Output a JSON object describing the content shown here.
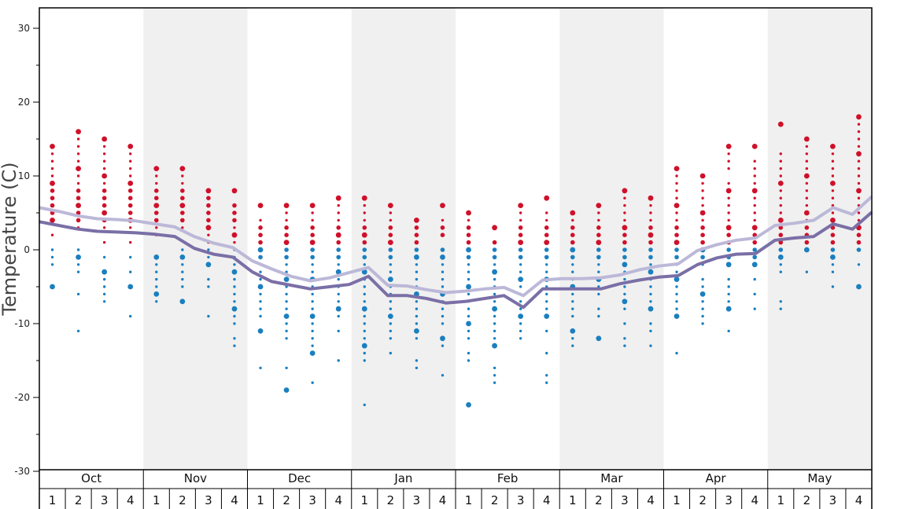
{
  "chart_data": {
    "type": "scatter",
    "ylabel": "Temperature (C)",
    "ylim": [
      -30,
      33
    ],
    "yticks": [
      30,
      20,
      10,
      0,
      -10,
      -20,
      -30
    ],
    "ytick_labels": [
      "30",
      "20",
      "10",
      "0",
      "-10",
      "-20",
      "-30"
    ],
    "months": [
      "Oct",
      "Nov",
      "Dec",
      "Jan",
      "Feb",
      "Mar",
      "Apr",
      "May"
    ],
    "weeks": [
      "1",
      "2",
      "3",
      "4"
    ],
    "colors": {
      "warm": "#d0102a",
      "cold": "#1b7fbf",
      "line_light": "#bcb8d8",
      "line_dark": "#7a6fa6",
      "band": "#f0f0f0",
      "frame": "#000000"
    },
    "series": [
      {
        "values": [
          5.7,
          5.2,
          4.6,
          4.2,
          4.1,
          3.9,
          3.5,
          3.1,
          1.8,
          0.9,
          0.3,
          -1.5,
          -2.6,
          -3.6,
          -4.2,
          -3.8,
          -3.1,
          -2.4,
          -4.8,
          -4.9,
          -5.4,
          -5.8,
          -5.6,
          -5.3,
          -5.1,
          -6.2,
          -4.1,
          -3.9,
          -3.9,
          -3.8,
          -3.4,
          -2.7,
          -2.2,
          -1.9,
          -0.1,
          0.7,
          1.3,
          1.6,
          3.3,
          3.6,
          4.0,
          5.7,
          4.8,
          7.2
        ]
      },
      {
        "values": [
          3.8,
          3.3,
          2.8,
          2.5,
          2.4,
          2.3,
          2.1,
          1.8,
          0.2,
          -0.6,
          -1.0,
          -3.0,
          -4.3,
          -4.8,
          -5.3,
          -5.0,
          -4.7,
          -3.6,
          -6.2,
          -6.2,
          -6.6,
          -7.2,
          -7.0,
          -6.6,
          -6.2,
          -7.8,
          -5.3,
          -5.3,
          -5.3,
          -5.3,
          -4.6,
          -4.1,
          -3.7,
          -3.5,
          -2.0,
          -1.1,
          -0.6,
          -0.5,
          1.3,
          1.6,
          1.8,
          3.5,
          2.8,
          5.1
        ]
      }
    ],
    "dots": [
      {
        "v": [
          14,
          13,
          12,
          11,
          10,
          9,
          8,
          7,
          6,
          5,
          4,
          2
        ],
        "c": [
          0,
          -1,
          -2,
          -5
        ]
      },
      {
        "v": [
          16,
          15,
          14,
          13,
          12,
          11,
          10,
          9,
          8,
          7,
          6,
          5,
          4,
          3
        ],
        "c": [
          0,
          -1,
          -2,
          -3,
          -6,
          -11
        ]
      },
      {
        "v": [
          15,
          14,
          13,
          12,
          11,
          10,
          9,
          8,
          7,
          6,
          5,
          4,
          3,
          1
        ],
        "c": [
          -1,
          -3,
          -4,
          -5,
          -6,
          -7
        ]
      },
      {
        "v": [
          14,
          13,
          12,
          11,
          10,
          9,
          8,
          7,
          6,
          5,
          4,
          3,
          1
        ],
        "c": [
          -1,
          -3,
          -5,
          -9
        ]
      },
      {
        "v": [
          11,
          10,
          9,
          8,
          7,
          6,
          5,
          4,
          3,
          2
        ],
        "c": [
          -1,
          -2,
          -3,
          -4,
          -5,
          -6,
          -7
        ]
      },
      {
        "v": [
          11,
          10,
          9,
          8,
          7,
          6,
          5,
          4,
          3
        ],
        "c": [
          0,
          -1,
          -2,
          -3,
          -4,
          -5,
          -7
        ]
      },
      {
        "v": [
          8,
          7,
          6,
          5,
          4,
          3,
          2,
          1
        ],
        "c": [
          0,
          -1,
          -2,
          -4,
          -5,
          -9
        ]
      },
      {
        "v": [
          8,
          6,
          5,
          4,
          3,
          2,
          1
        ],
        "c": [
          0,
          -1,
          -2,
          -3,
          -4,
          -5,
          -6,
          -7,
          -8,
          -9,
          -10,
          -12,
          -13
        ]
      },
      {
        "v": [
          6,
          4,
          3,
          2,
          1
        ],
        "c": [
          0,
          -1,
          -2,
          -3,
          -4,
          -5,
          -6,
          -7,
          -8,
          -9,
          -11,
          -16
        ]
      },
      {
        "v": [
          6,
          5,
          4,
          3,
          2,
          1
        ],
        "c": [
          0,
          -1,
          -2,
          -3,
          -4,
          -5,
          -6,
          -7,
          -8,
          -9,
          -10,
          -11,
          -12,
          -16,
          -19
        ]
      },
      {
        "v": [
          6,
          5,
          4,
          3,
          2,
          1
        ],
        "c": [
          0,
          -1,
          -2,
          -3,
          -4,
          -5,
          -6,
          -7,
          -8,
          -9,
          -10,
          -11,
          -12,
          -13,
          -14,
          -18
        ]
      },
      {
        "v": [
          7,
          6,
          5,
          4,
          3,
          2,
          1
        ],
        "c": [
          0,
          -1,
          -2,
          -3,
          -4,
          -5,
          -6,
          -7,
          -8,
          -9,
          -11,
          -15
        ]
      },
      {
        "v": [
          7,
          6,
          5,
          4,
          3,
          2,
          1
        ],
        "c": [
          0,
          -1,
          -2,
          -3,
          -4,
          -5,
          -6,
          -7,
          -8,
          -9,
          -10,
          -11,
          -12,
          -13,
          -14,
          -15,
          -21
        ]
      },
      {
        "v": [
          6,
          5,
          4,
          3,
          2,
          1
        ],
        "c": [
          0,
          -1,
          -2,
          -3,
          -4,
          -5,
          -6,
          -7,
          -8,
          -9,
          -10,
          -11,
          -12,
          -14
        ]
      },
      {
        "v": [
          4,
          3,
          2,
          1
        ],
        "c": [
          0,
          -1,
          -2,
          -3,
          -4,
          -5,
          -6,
          -7,
          -8,
          -9,
          -10,
          -11,
          -12,
          -15,
          -16
        ]
      },
      {
        "v": [
          6,
          4,
          3,
          2
        ],
        "c": [
          0,
          -1,
          -2,
          -3,
          -4,
          -5,
          -6,
          -7,
          -8,
          -9,
          -10,
          -12,
          -13,
          -17
        ]
      },
      {
        "v": [
          5,
          4,
          3,
          2,
          1
        ],
        "c": [
          0,
          -1,
          -2,
          -3,
          -4,
          -5,
          -6,
          -7,
          -8,
          -9,
          -10,
          -11,
          -12,
          -14,
          -15,
          -21
        ]
      },
      {
        "v": [
          3,
          1
        ],
        "c": [
          0,
          -1,
          -2,
          -3,
          -4,
          -5,
          -6,
          -7,
          -8,
          -9,
          -10,
          -11,
          -12,
          -13,
          -16,
          -17,
          -18
        ]
      },
      {
        "v": [
          6,
          5,
          4,
          3,
          2,
          1
        ],
        "c": [
          0,
          -1,
          -2,
          -3,
          -4,
          -5,
          -6,
          -7,
          -8,
          -9,
          -10,
          -11,
          -12
        ]
      },
      {
        "v": [
          7,
          5,
          4,
          3,
          2,
          1
        ],
        "c": [
          0,
          -1,
          -2,
          -3,
          -4,
          -5,
          -6,
          -7,
          -8,
          -9,
          -11,
          -14,
          -17,
          -18
        ]
      },
      {
        "v": [
          5,
          4,
          3,
          2,
          1
        ],
        "c": [
          0,
          -1,
          -2,
          -3,
          -4,
          -5,
          -6,
          -7,
          -8,
          -9,
          -11,
          -12,
          -13
        ]
      },
      {
        "v": [
          6,
          5,
          4,
          3,
          2,
          1
        ],
        "c": [
          0,
          -1,
          -2,
          -3,
          -4,
          -5,
          -6,
          -8,
          -9,
          -12
        ]
      },
      {
        "v": [
          8,
          7,
          6,
          5,
          4,
          3,
          2,
          1
        ],
        "c": [
          0,
          -1,
          -2,
          -3,
          -4,
          -5,
          -6,
          -7,
          -8,
          -10,
          -12,
          -13
        ]
      },
      {
        "v": [
          7,
          6,
          5,
          4,
          3,
          2,
          1
        ],
        "c": [
          0,
          -1,
          -2,
          -3,
          -4,
          -5,
          -6,
          -7,
          -8,
          -10,
          -11,
          -13
        ]
      },
      {
        "v": [
          11,
          10,
          9,
          8,
          7,
          6,
          5,
          4,
          3,
          2,
          1
        ],
        "c": [
          0,
          -1,
          -2,
          -3,
          -4,
          -5,
          -6,
          -7,
          -8,
          -9,
          -14
        ]
      },
      {
        "v": [
          10,
          9,
          8,
          7,
          6,
          5,
          4,
          3,
          2,
          1
        ],
        "c": [
          0,
          -1,
          -2,
          -4,
          -5,
          -6,
          -7,
          -8,
          -9,
          -10
        ]
      },
      {
        "v": [
          14,
          13,
          12,
          11,
          9,
          8,
          7,
          6,
          5,
          4,
          3,
          2,
          1
        ],
        "c": [
          0,
          -1,
          -2,
          -4,
          -5,
          -6,
          -7,
          -8,
          -11
        ]
      },
      {
        "v": [
          14,
          12,
          11,
          10,
          9,
          8,
          7,
          6,
          5,
          4,
          3,
          2,
          1
        ],
        "c": [
          0,
          -1,
          -2,
          -4,
          -6,
          -8
        ]
      },
      {
        "v": [
          17,
          13,
          12,
          11,
          10,
          9,
          8,
          7,
          6,
          5,
          4,
          3,
          2,
          1
        ],
        "c": [
          0,
          -1,
          -2,
          -3,
          -7,
          -8
        ]
      },
      {
        "v": [
          15,
          14,
          13,
          12,
          11,
          10,
          9,
          8,
          7,
          6,
          5,
          4,
          3,
          2,
          1
        ],
        "c": [
          0,
          -3
        ]
      },
      {
        "v": [
          14,
          13,
          12,
          11,
          10,
          9,
          8,
          7,
          6,
          5,
          4,
          3,
          2,
          1
        ],
        "c": [
          0,
          -1,
          -2,
          -3,
          -5
        ]
      },
      {
        "v": [
          18,
          17,
          16,
          15,
          14,
          13,
          12,
          11,
          10,
          9,
          8,
          7,
          6,
          5,
          4,
          3,
          2,
          1
        ],
        "c": [
          0,
          -2,
          -5
        ]
      }
    ]
  }
}
